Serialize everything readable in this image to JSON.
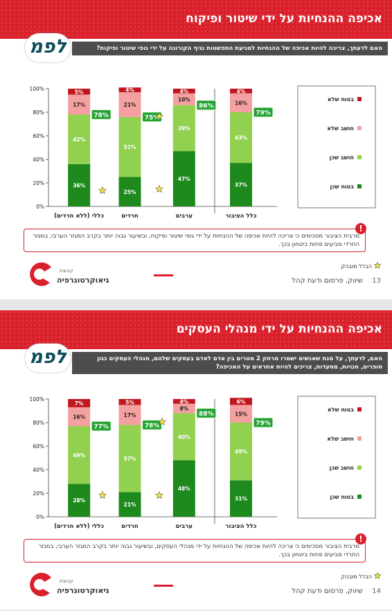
{
  "chart_data": [
    {
      "type": "stacked-bar",
      "title": "אכיפה ההנחיות על ידי שיטור ופיקוח",
      "categories": [
        "כללי (ללא חרדים)",
        "חרדים",
        "ערבים",
        "כלל הציבור"
      ],
      "series": [
        {
          "name": "בטוח שכן",
          "color": "#1e8a1e",
          "values": [
            36,
            25,
            47,
            37
          ],
          "value_labels": [
            "36%",
            "25%",
            "47%",
            "37%"
          ]
        },
        {
          "name": "חושב שכן",
          "color": "#92d050",
          "values": [
            42,
            51,
            39,
            43
          ],
          "value_labels": [
            "42%",
            "51%",
            "39%",
            "43%"
          ]
        },
        {
          "name": "חושב שלא",
          "color": "#f5a0a0",
          "values": [
            17,
            21,
            10,
            16
          ],
          "value_labels": [
            "17%",
            "21%",
            "10%",
            "16%"
          ]
        },
        {
          "name": "בטוח שלא",
          "color": "#c0161e",
          "values": [
            5,
            4,
            4,
            4
          ],
          "value_labels": [
            "5%",
            "4%",
            "4%",
            "4%"
          ]
        }
      ],
      "totals": {
        "values": [
          78,
          75,
          86,
          79
        ],
        "value_labels": [
          "78%",
          "75%",
          "86%",
          "79%"
        ]
      },
      "ylim": [
        0,
        100
      ],
      "yticks": [
        {
          "value": 0,
          "label": "0%"
        },
        {
          "value": 20,
          "label": "20%"
        },
        {
          "value": 40,
          "label": "40%"
        },
        {
          "value": 60,
          "label": "60%"
        },
        {
          "value": 80,
          "label": "80%"
        },
        {
          "value": 100,
          "label": "100%"
        }
      ],
      "legend": "right"
    },
    {
      "type": "stacked-bar",
      "title": "אכיפה ההנחיות על ידי מנהלי העסקים",
      "categories": [
        "כללי (ללא חרדים)",
        "חרדים",
        "ערבים",
        "כלל הציבור"
      ],
      "series": [
        {
          "name": "בטוח שכן",
          "color": "#1e8a1e",
          "values": [
            28,
            21,
            48,
            31
          ],
          "value_labels": [
            "28%",
            "21%",
            "48%",
            "31%"
          ]
        },
        {
          "name": "חושב שכן",
          "color": "#92d050",
          "values": [
            49,
            57,
            40,
            49
          ],
          "value_labels": [
            "49%",
            "57%",
            "40%",
            "49%"
          ]
        },
        {
          "name": "חושב שלא",
          "color": "#f5a0a0",
          "values": [
            16,
            17,
            8,
            15
          ],
          "value_labels": [
            "16%",
            "17%",
            "8%",
            "15%"
          ]
        },
        {
          "name": "בטוח שלא",
          "color": "#c0161e",
          "values": [
            7,
            5,
            4,
            6
          ],
          "value_labels": [
            "7%",
            "5%",
            "4%",
            "6%"
          ]
        }
      ],
      "totals": {
        "values": [
          77,
          78,
          88,
          79
        ],
        "value_labels": [
          "77%",
          "78%",
          "88%",
          "79%"
        ]
      },
      "ylim": [
        0,
        100
      ],
      "yticks": [
        {
          "value": 0,
          "label": "0%"
        },
        {
          "value": 20,
          "label": "20%"
        },
        {
          "value": 40,
          "label": "40%"
        },
        {
          "value": 60,
          "label": "60%"
        },
        {
          "value": 80,
          "label": "80%"
        },
        {
          "value": 100,
          "label": "100%"
        }
      ],
      "legend": "right"
    }
  ],
  "slides": [
    {
      "logo": "לפמ",
      "question": "האם לדעתך, צריכה להיות אכיפה של ההנחיות למניעת התפשטות נגיף הקורונה על ידי גופי שיטור ופיקוח?",
      "note": "מרבית הציבור מסכימים כי צריכה להיות אכיפה של ההנחיות על ידי גופי שיטור ופיקוח, ובשיעור גבוה יותר בקרב המגזר הערבי, במגזר החרדי מביעים פחות ביטחון בכך.",
      "significance": "הבדל מובהק",
      "group": "קבוצת",
      "brand": "גיאוקרטוגרפיה",
      "footer": "שיווק, פרסום ודעת קהל",
      "page": "13"
    },
    {
      "logo": "לפמ",
      "question": "האם, לדעתך, על מנת שאנשים ישמרו מרחק 2 מטרים בין אדם לאדם בעסקים שלהם, מנהלי העסקים כגון סופרים, חנויות, מסעדות, צריכים להיות אחראים על האכיפה?",
      "note": "מרבית הציבור מסכימים כי צריכה להיות אכיפה של ההנחיות על ידי מנהלי העסקים, ובשיעור גבוה יותר בקרב המגזר הערבי, במגזר החרדי מביעים פחות ביטחון בכך.",
      "significance": "הבדל מובהק",
      "group": "קבוצת",
      "brand": "גיאוקרטוגרפיה",
      "footer": "שיווק, פרסום ודעת קהל",
      "page": "14"
    }
  ]
}
